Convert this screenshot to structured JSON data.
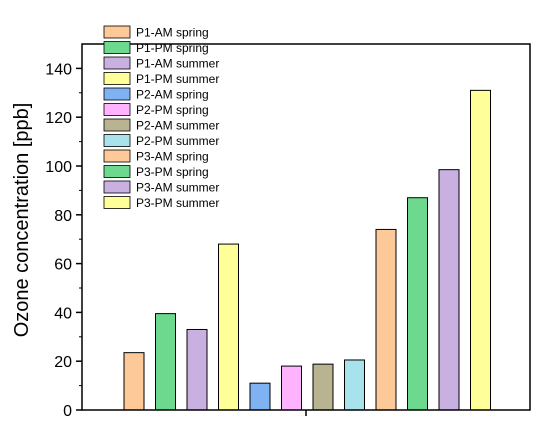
{
  "chart_data": {
    "type": "bar",
    "title": "",
    "xlabel": "",
    "ylabel": "Ozone concentration [ppb]",
    "ylim": [
      0,
      150
    ],
    "yticks": [
      0,
      20,
      40,
      60,
      80,
      100,
      120,
      140
    ],
    "grid": false,
    "legend_position": "top-left",
    "series": [
      {
        "name": "P1-AM spring",
        "value": 23.5,
        "color": "#fdc998"
      },
      {
        "name": "P1-PM spring",
        "value": 39.5,
        "color": "#6dd98f"
      },
      {
        "name": "P1-AM summer",
        "value": 33.0,
        "color": "#c8b0e0"
      },
      {
        "name": "P1-PM summer",
        "value": 68.0,
        "color": "#ffff9a"
      },
      {
        "name": "P2-AM spring",
        "value": 11.0,
        "color": "#7fb2f2"
      },
      {
        "name": "P2-PM spring",
        "value": 18.0,
        "color": "#ffb3ff"
      },
      {
        "name": "P2-AM summer",
        "value": 18.8,
        "color": "#b8b391"
      },
      {
        "name": "P2-PM summer",
        "value": 20.5,
        "color": "#a8e2eb"
      },
      {
        "name": "P3-AM spring",
        "value": 74.0,
        "color": "#fdc998"
      },
      {
        "name": "P3-PM spring",
        "value": 87.0,
        "color": "#6dd98f"
      },
      {
        "name": "P3-AM summer",
        "value": 98.5,
        "color": "#c8b0e0"
      },
      {
        "name": "P3-PM summer",
        "value": 131.0,
        "color": "#ffff9a"
      }
    ]
  }
}
